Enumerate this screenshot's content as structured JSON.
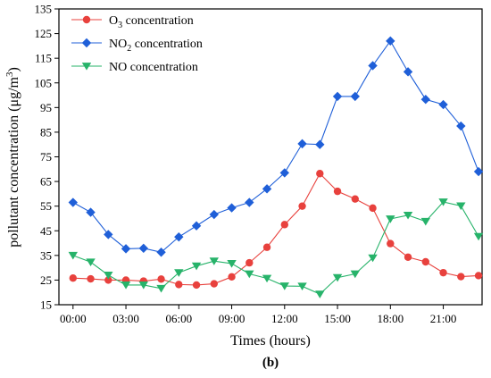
{
  "chart_data": {
    "type": "line",
    "title": "",
    "panel_label": "(b)",
    "xlabel": "Times (hours)",
    "ylabel": "pollutant concentration (μg/m³)",
    "ylabel_parts": {
      "main": "pollutant concentration (μg/m",
      "sup": "3",
      "end": ")"
    },
    "xlim": [
      -0.8,
      23.2
    ],
    "ylim": [
      15,
      135
    ],
    "x_ticks": [
      0,
      3,
      6,
      9,
      12,
      15,
      18,
      21
    ],
    "x_tick_labels": [
      "00:00",
      "03:00",
      "06:00",
      "09:00",
      "12:00",
      "15:00",
      "18:00",
      "21:00"
    ],
    "y_ticks": [
      15,
      25,
      35,
      45,
      55,
      65,
      75,
      85,
      95,
      105,
      115,
      125,
      135
    ],
    "y_tick_labels": [
      "15",
      "25",
      "35",
      "45",
      "55",
      "65",
      "75",
      "85",
      "95",
      "105",
      "115",
      "125",
      "135"
    ],
    "grid": false,
    "legend_position": "top-left",
    "x": [
      0,
      1,
      2,
      3,
      4,
      5,
      6,
      7,
      8,
      9,
      10,
      11,
      12,
      13,
      14,
      15,
      16,
      17,
      18,
      19,
      20,
      21,
      22,
      23
    ],
    "series": [
      {
        "name": "O3 concentration",
        "legend_main": "O",
        "legend_sub": "3",
        "legend_rest": " concentration",
        "color": "#e8413d",
        "marker": "circle",
        "values": [
          25.8,
          25.5,
          25.0,
          25.0,
          24.6,
          25.4,
          23.2,
          23.0,
          23.5,
          26.3,
          32.0,
          38.3,
          47.5,
          55.0,
          68.2,
          61.0,
          57.9,
          54.2,
          39.8,
          34.3,
          32.4,
          28.0,
          26.4,
          26.8
        ]
      },
      {
        "name": "NO2 concentration",
        "legend_main": "NO",
        "legend_sub": "2",
        "legend_rest": " concentration",
        "color": "#1f5fd8",
        "marker": "diamond",
        "values": [
          56.5,
          52.5,
          43.5,
          37.7,
          37.9,
          36.3,
          42.5,
          47.0,
          51.6,
          54.3,
          56.5,
          62.0,
          68.5,
          80.3,
          80.0,
          99.5,
          99.5,
          112.0,
          122.0,
          109.5,
          98.3,
          96.2,
          87.5,
          69.0
        ]
      },
      {
        "name": "NO concentration",
        "legend_main": "NO concentration",
        "legend_sub": "",
        "legend_rest": "",
        "color": "#27b36a",
        "marker": "triangle-down",
        "values": [
          35.0,
          32.3,
          27.0,
          23.0,
          23.0,
          21.6,
          28.0,
          30.7,
          32.7,
          31.7,
          27.5,
          25.7,
          22.6,
          22.5,
          19.3,
          26.0,
          27.5,
          34.0,
          49.8,
          51.3,
          48.8,
          56.7,
          55.1,
          42.7
        ]
      }
    ]
  }
}
